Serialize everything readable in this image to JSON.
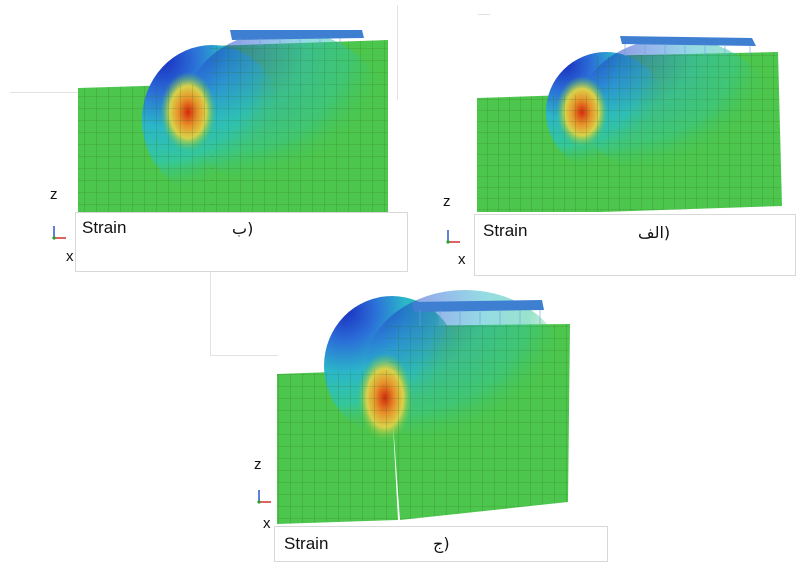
{
  "panels": [
    {
      "id": "b",
      "tag": "(ب",
      "strain_label": "Strain",
      "axis_z": "z",
      "axis_x": "x"
    },
    {
      "id": "alef",
      "tag": "(الف",
      "strain_label": "Strain",
      "axis_z": "z",
      "axis_x": "x"
    },
    {
      "id": "jim",
      "tag": "(ج",
      "strain_label": "Strain",
      "axis_z": "z",
      "axis_x": "x"
    }
  ],
  "colors": {
    "soil_green": "#4cc64c",
    "mesh_line": "#2f6b1f",
    "strain_red": "#d42a0c",
    "strain_orange": "#e8922a",
    "strain_yellow": "#d9d24a",
    "strain_blue": "#1a2fbf",
    "strain_cyan": "#2bb7c9",
    "load_blue": "#3f7fd1"
  },
  "icons": [
    "axis-triad-icon"
  ]
}
